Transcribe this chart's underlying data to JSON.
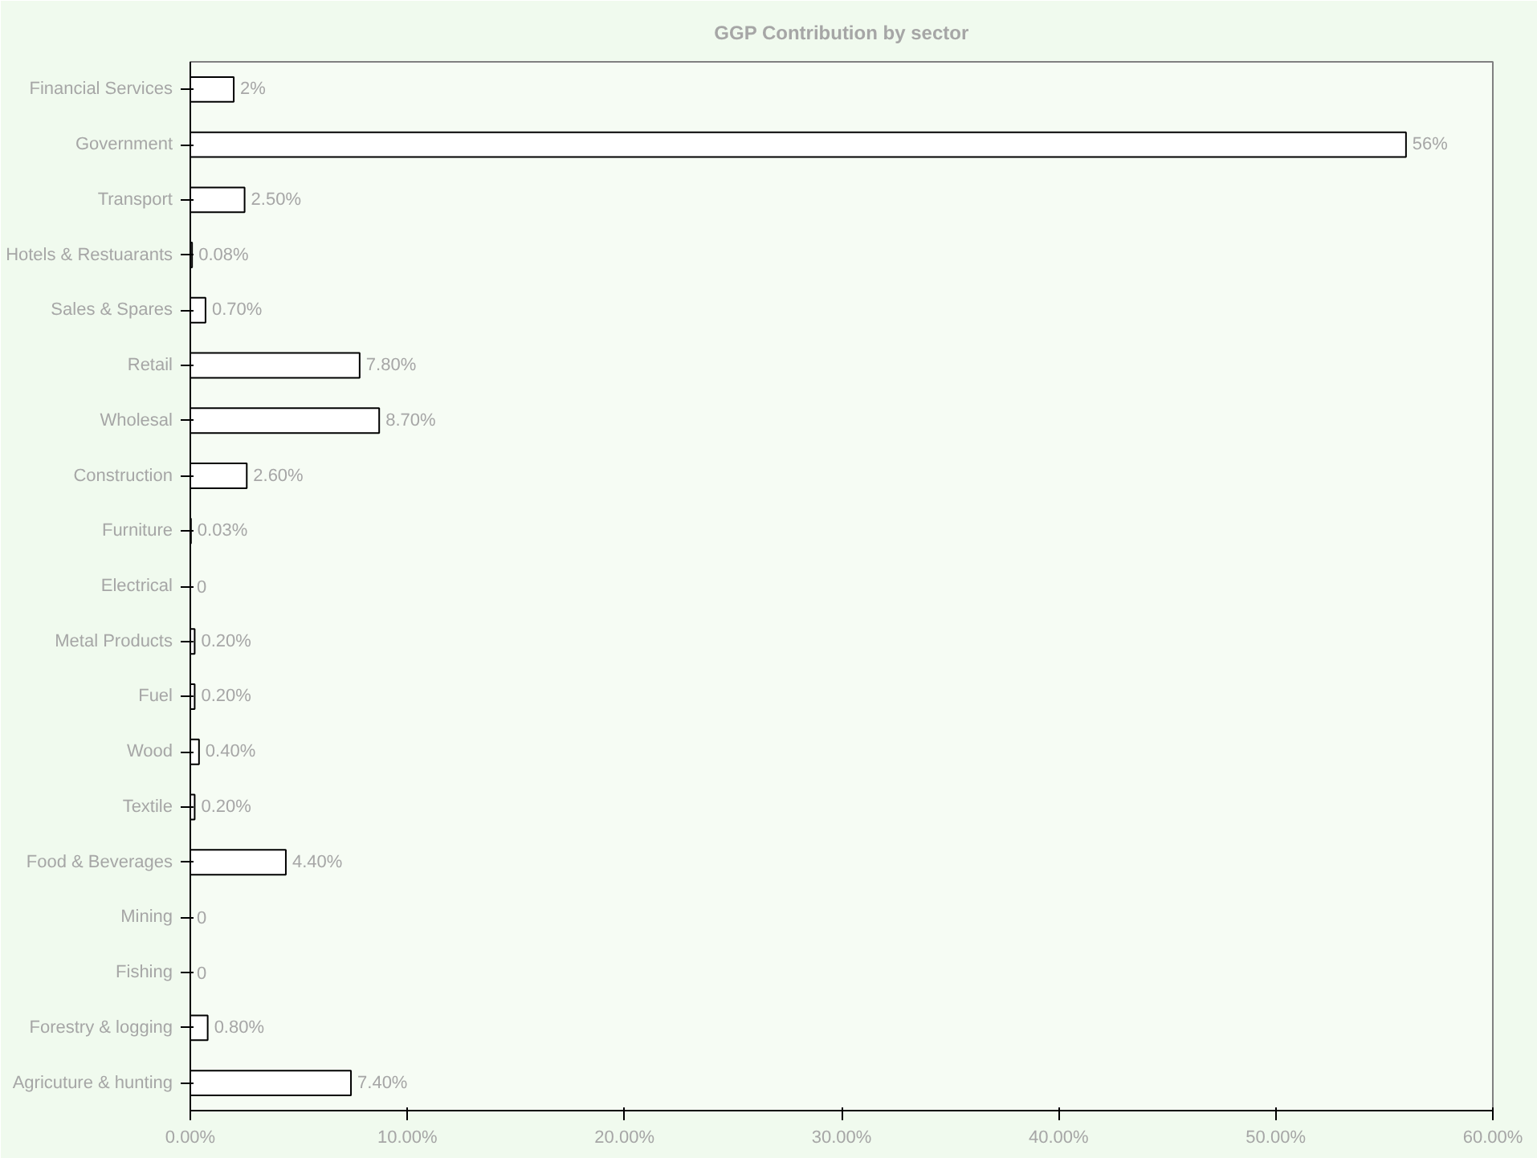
{
  "chart_data": {
    "type": "bar",
    "orientation": "horizontal",
    "title": "GGP Contribution by sector",
    "categories": [
      "Financial Services",
      "Government",
      "Transport",
      "Hotels & Restuarants",
      "Sales & Spares",
      "Retail",
      "Wholesal",
      "Construction",
      "Furniture",
      "Electrical",
      "Metal Products",
      "Fuel",
      "Wood",
      "Textile",
      "Food & Beverages",
      "Mining",
      "Fishing",
      "Forestry & logging",
      "Agricuture & hunting"
    ],
    "values": [
      2,
      56,
      2.5,
      0.08,
      0.7,
      7.8,
      8.7,
      2.6,
      0.03,
      0,
      0.2,
      0.2,
      0.4,
      0.2,
      4.4,
      0,
      0,
      0.8,
      7.4
    ],
    "value_labels": [
      "2%",
      "56%",
      "2.50%",
      "0.08%",
      "0.70%",
      "7.80%",
      "8.70%",
      "2.60%",
      "0.03%",
      "0",
      "0.20%",
      "0.20%",
      "0.40%",
      "0.20%",
      "4.40%",
      "0",
      "0",
      "0.80%",
      "7.40%"
    ],
    "color": "#ffffff",
    "xlim": [
      0,
      60
    ],
    "xticks": [
      {
        "value": 0,
        "label": "0.00%"
      },
      {
        "value": 10,
        "label": "10.00%"
      },
      {
        "value": 20,
        "label": "20.00%"
      },
      {
        "value": 30,
        "label": "30.00%"
      },
      {
        "value": 40,
        "label": "40.00%"
      },
      {
        "value": 50,
        "label": "50.00%"
      },
      {
        "value": 60,
        "label": "60.00%"
      }
    ],
    "grid": false
  }
}
